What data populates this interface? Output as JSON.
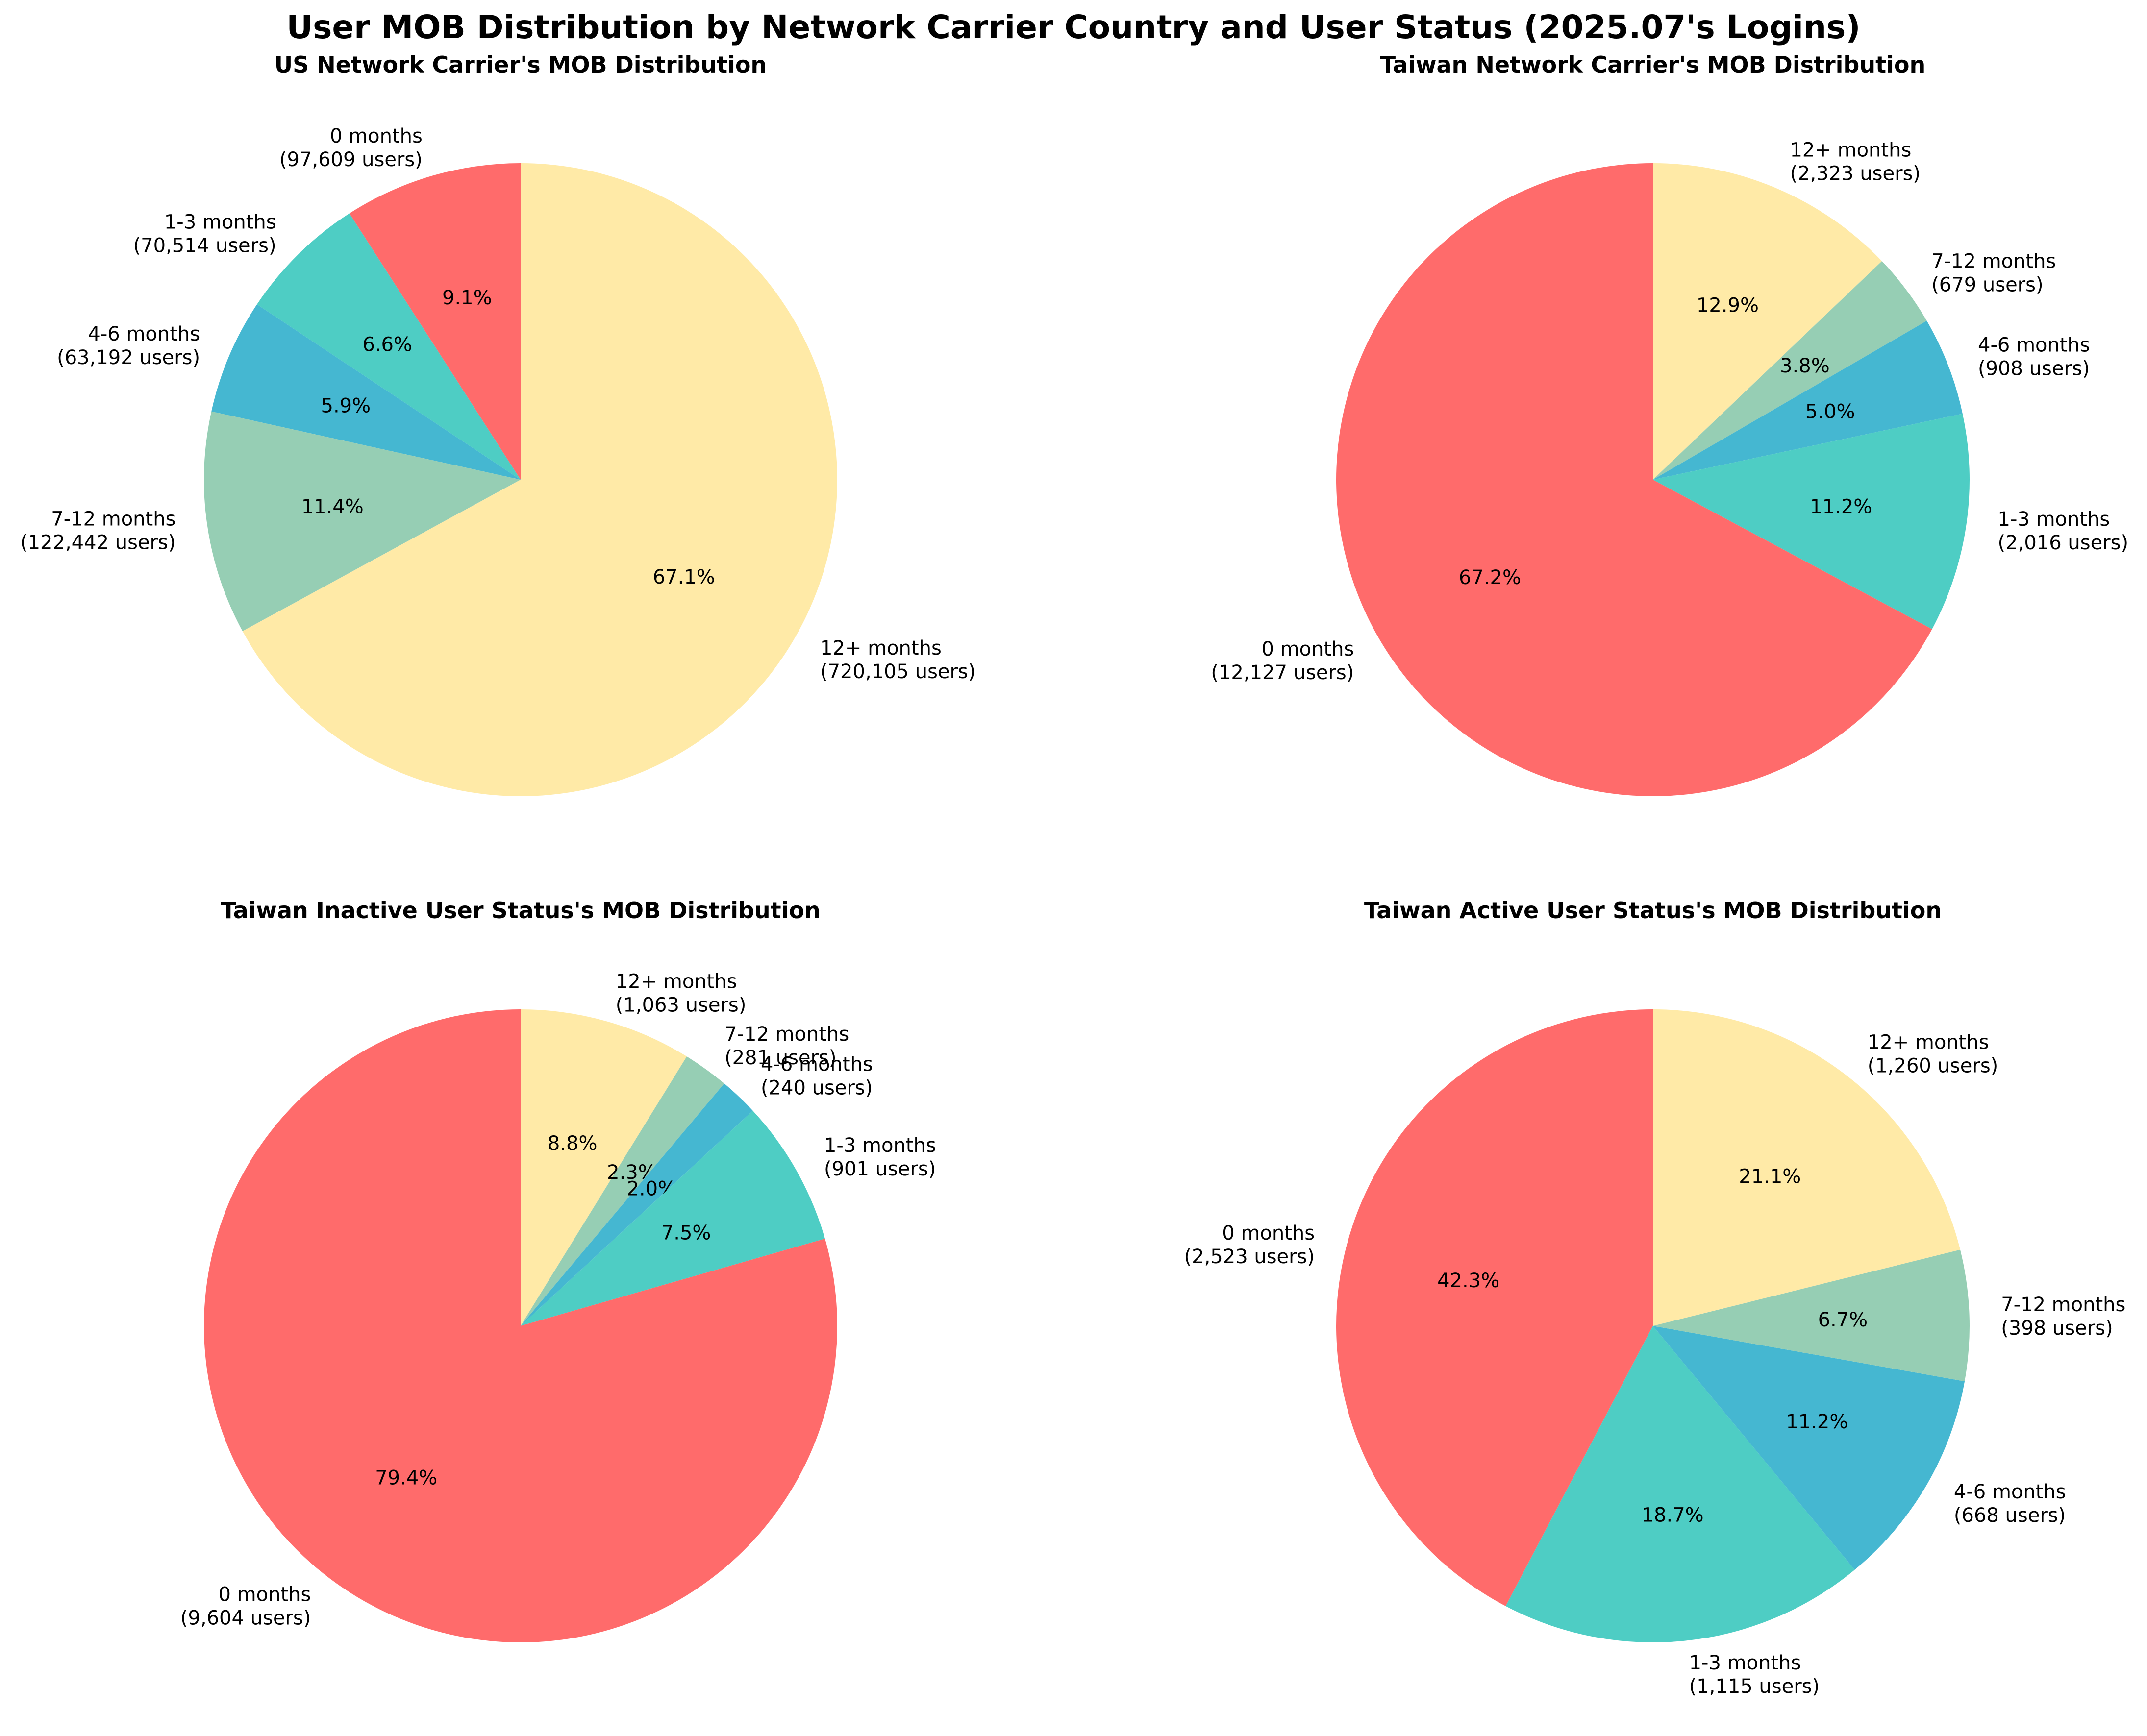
{
  "figure": {
    "title": "User MOB Distribution by Network Carrier Country and User Status (2025.07's Logins)"
  },
  "chart_data": [
    {
      "type": "pie",
      "title": "US Network Carrier's MOB Distribution",
      "slices": [
        {
          "name": "0 months",
          "users_label": "(97,609 users)",
          "value": 97609,
          "pct_label": "9.1%",
          "color": "#FF6B6B"
        },
        {
          "name": "1-3 months",
          "users_label": "(70,514 users)",
          "value": 70514,
          "pct_label": "6.6%",
          "color": "#4ECDC4"
        },
        {
          "name": "4-6 months",
          "users_label": "(63,192 users)",
          "value": 63192,
          "pct_label": "5.9%",
          "color": "#45B7D1"
        },
        {
          "name": "7-12 months",
          "users_label": "(122,442 users)",
          "value": 122442,
          "pct_label": "11.4%",
          "color": "#96CEB4"
        },
        {
          "name": "12+ months",
          "users_label": "(720,105 users)",
          "value": 720105,
          "pct_label": "67.1%",
          "color": "#FFEAA7"
        }
      ]
    },
    {
      "type": "pie",
      "title": "Taiwan Network Carrier's MOB Distribution",
      "slices": [
        {
          "name": "0 months",
          "users_label": "(12,127 users)",
          "value": 12127,
          "pct_label": "67.2%",
          "color": "#FF6B6B"
        },
        {
          "name": "1-3 months",
          "users_label": "(2,016 users)",
          "value": 2016,
          "pct_label": "11.2%",
          "color": "#4ECDC4"
        },
        {
          "name": "4-6 months",
          "users_label": "(908 users)",
          "value": 908,
          "pct_label": "5.0%",
          "color": "#45B7D1"
        },
        {
          "name": "7-12 months",
          "users_label": "(679 users)",
          "value": 679,
          "pct_label": "3.8%",
          "color": "#96CEB4"
        },
        {
          "name": "12+ months",
          "users_label": "(2,323 users)",
          "value": 2323,
          "pct_label": "12.9%",
          "color": "#FFEAA7"
        }
      ]
    },
    {
      "type": "pie",
      "title": "Taiwan Inactive User Status's MOB Distribution",
      "slices": [
        {
          "name": "0 months",
          "users_label": "(9,604 users)",
          "value": 9604,
          "pct_label": "79.4%",
          "color": "#FF6B6B"
        },
        {
          "name": "1-3 months",
          "users_label": "(901 users)",
          "value": 901,
          "pct_label": "7.5%",
          "color": "#4ECDC4"
        },
        {
          "name": "4-6 months",
          "users_label": "(240 users)",
          "value": 240,
          "pct_label": "2.0%",
          "color": "#45B7D1"
        },
        {
          "name": "7-12 months",
          "users_label": "(281 users)",
          "value": 281,
          "pct_label": "2.3%",
          "color": "#96CEB4"
        },
        {
          "name": "12+ months",
          "users_label": "(1,063 users)",
          "value": 1063,
          "pct_label": "8.8%",
          "color": "#FFEAA7"
        }
      ]
    },
    {
      "type": "pie",
      "title": "Taiwan Active User Status's MOB Distribution",
      "slices": [
        {
          "name": "0 months",
          "users_label": "(2,523 users)",
          "value": 2523,
          "pct_label": "42.3%",
          "color": "#FF6B6B"
        },
        {
          "name": "1-3 months",
          "users_label": "(1,115 users)",
          "value": 1115,
          "pct_label": "18.7%",
          "color": "#4ECDC4"
        },
        {
          "name": "4-6 months",
          "users_label": "(668 users)",
          "value": 668,
          "pct_label": "11.2%",
          "color": "#45B7D1"
        },
        {
          "name": "7-12 months",
          "users_label": "(398 users)",
          "value": 398,
          "pct_label": "6.7%",
          "color": "#96CEB4"
        },
        {
          "name": "12+ months",
          "users_label": "(1,260 users)",
          "value": 1260,
          "pct_label": "21.1%",
          "color": "#FFEAA7"
        }
      ]
    }
  ]
}
